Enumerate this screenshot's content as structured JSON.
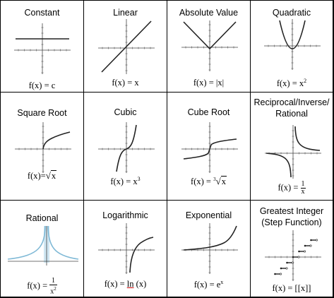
{
  "cells": [
    {
      "id": "constant",
      "title": "Constant",
      "formula": "f(x) = c"
    },
    {
      "id": "linear",
      "title": "Linear",
      "formula": "f(x) = x"
    },
    {
      "id": "absolute",
      "title": "Absolute Value",
      "formula": "f(x) = |x|"
    },
    {
      "id": "quadratic",
      "title": "Quadratic",
      "formula_prefix": "f(x) = x",
      "formula_sup": "2"
    },
    {
      "id": "sqrt",
      "title": "Square Root",
      "formula_prefix": "f(x)=",
      "formula_radical": "√",
      "formula_radicand": "x"
    },
    {
      "id": "cubic",
      "title": "Cubic",
      "formula_prefix": "f(x) = x",
      "formula_sup": "3"
    },
    {
      "id": "cuberoot",
      "title": "Cube Root",
      "formula_prefix": "f(x) = ",
      "formula_index": "3",
      "formula_radical": "√",
      "formula_radicand": "x"
    },
    {
      "id": "reciprocal",
      "title_line1": "Reciprocal/Inverse/",
      "title_line2": "Rational",
      "formula_prefix": "f(x) = ",
      "frac_num": "1",
      "frac_den": "x"
    },
    {
      "id": "rational",
      "title": "Rational",
      "formula_prefix": "f(x) = ",
      "frac_num": "1",
      "frac_den_base": "x",
      "frac_den_sup": "2"
    },
    {
      "id": "log",
      "title": "Logarithmic",
      "formula_prefix": "f(x) = ",
      "formula_fn": "ln",
      "formula_suffix": " (x)"
    },
    {
      "id": "exp",
      "title": "Exponential",
      "formula_prefix": "f(x) = e",
      "formula_sup": "x"
    },
    {
      "id": "step",
      "title_line1": "Greatest Integer",
      "title_line2": "(Step Function)",
      "formula": "f(x) = [[x]]"
    }
  ],
  "colors": {
    "curve": "#222222",
    "axis": "#444444",
    "tick": "#555555",
    "rational_curve": "#7fb9d6",
    "rational_fill": "#cfe6f2"
  }
}
